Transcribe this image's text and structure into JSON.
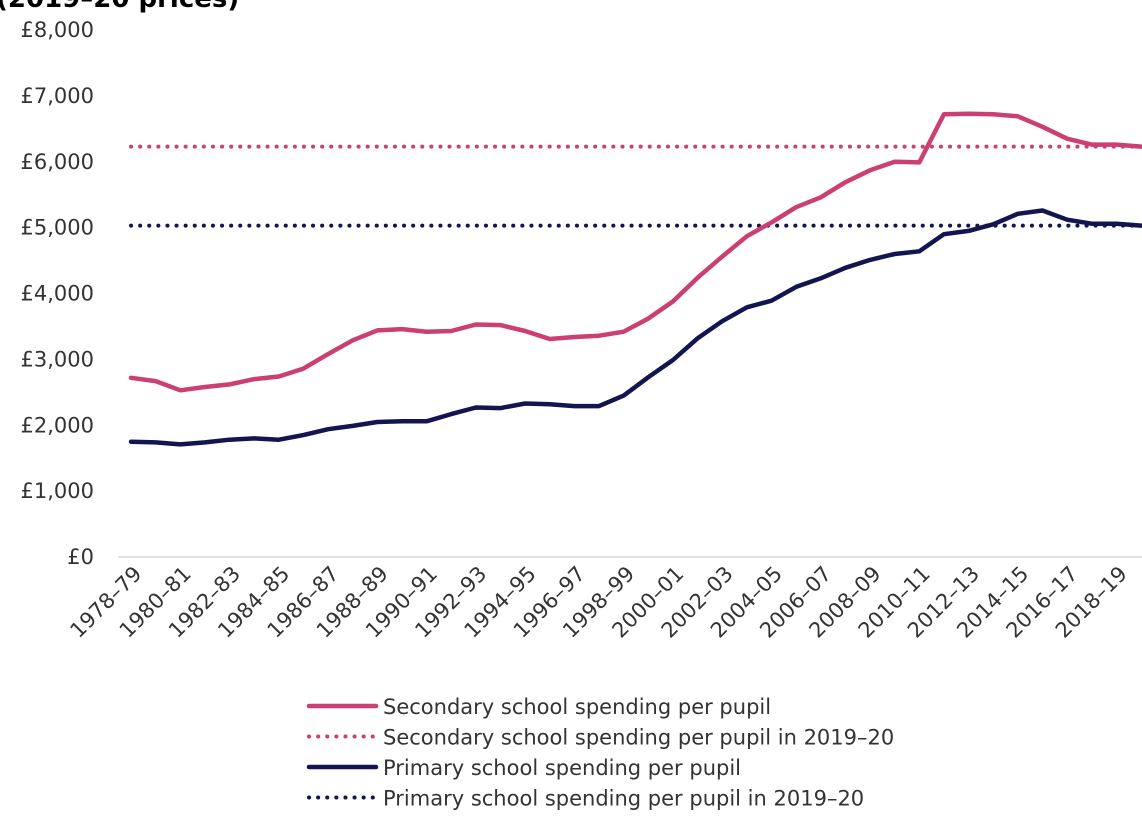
{
  "chart_data": {
    "type": "line",
    "title_fragment": "(2019–20 prices)",
    "xlabel": "",
    "ylabel": "",
    "ylim": [
      0,
      8000
    ],
    "y_ticks": [
      "£0",
      "£1,000",
      "£2,000",
      "£3,000",
      "£4,000",
      "£5,000",
      "£6,000",
      "£7,000",
      "£8,000"
    ],
    "y_tick_values": [
      0,
      1000,
      2000,
      3000,
      4000,
      5000,
      6000,
      7000,
      8000
    ],
    "categories": [
      "1978–79",
      "1979–80",
      "1980–81",
      "1981–82",
      "1982–83",
      "1983–84",
      "1984–85",
      "1985–86",
      "1986–87",
      "1987–88",
      "1988–89",
      "1989–90",
      "1990–91",
      "1991–92",
      "1992–93",
      "1993–94",
      "1994–95",
      "1995–96",
      "1996–97",
      "1997–98",
      "1998–99",
      "1999–00",
      "2000–01",
      "2001–02",
      "2002–03",
      "2003–04",
      "2004–05",
      "2005–06",
      "2006–07",
      "2007–08",
      "2008–09",
      "2009–10",
      "2010–11",
      "2011–12",
      "2012–13",
      "2013–14",
      "2014–15",
      "2015–16",
      "2016–17",
      "2017–18",
      "2018–19",
      "2019–20"
    ],
    "x_tick_labels": [
      "1978–79",
      "1980–81",
      "1982–83",
      "1984–85",
      "1986–87",
      "1988–89",
      "1990–91",
      "1992–93",
      "1994–95",
      "1996–97",
      "1998–99",
      "2000–01",
      "2002–03",
      "2004–05",
      "2006–07",
      "2008–09",
      "2010–11",
      "2012–13",
      "2014–15",
      "2016–17",
      "2018–19"
    ],
    "series": [
      {
        "name": "Secondary school spending per pupil",
        "color": "#cc3f73",
        "style": "solid",
        "values": [
          2720,
          2670,
          2530,
          2580,
          2620,
          2700,
          2740,
          2860,
          3080,
          3290,
          3440,
          3460,
          3420,
          3430,
          3530,
          3520,
          3430,
          3310,
          3340,
          3360,
          3420,
          3620,
          3880,
          4240,
          4560,
          4870,
          5080,
          5310,
          5460,
          5690,
          5870,
          6000,
          5990,
          6720,
          6730,
          6720,
          6690,
          6530,
          6350,
          6260,
          6260,
          6230
        ]
      },
      {
        "name": "Secondary school spending per pupil in 2019–20",
        "color": "#cc3f73",
        "style": "dotted",
        "constant": 6230
      },
      {
        "name": "Primary school spending per pupil",
        "color": "#141450",
        "style": "solid",
        "values": [
          1750,
          1740,
          1710,
          1740,
          1780,
          1800,
          1780,
          1850,
          1940,
          1990,
          2050,
          2060,
          2060,
          2170,
          2270,
          2260,
          2330,
          2320,
          2290,
          2290,
          2450,
          2730,
          2990,
          3320,
          3580,
          3790,
          3890,
          4100,
          4230,
          4390,
          4510,
          4600,
          4640,
          4900,
          4950,
          5050,
          5210,
          5260,
          5120,
          5060,
          5060,
          5030
        ]
      },
      {
        "name": "Primary school spending per pupil in 2019–20",
        "color": "#141450",
        "style": "dotted",
        "constant": 5030
      }
    ],
    "grid": false,
    "legend_placement": "bottom"
  }
}
